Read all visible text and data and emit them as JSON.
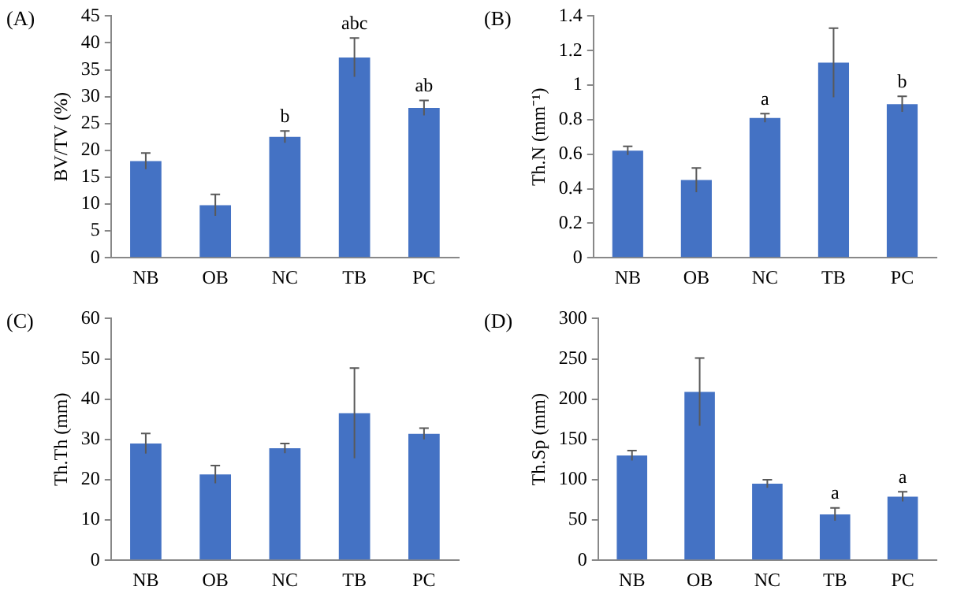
{
  "chart_data": [
    {
      "type": "bar",
      "title": "(A)",
      "ylabel": "BV/TV (%)",
      "categories": [
        "NB",
        "OB",
        "NC",
        "TB",
        "PC"
      ],
      "color": "#4472c4",
      "values": [
        18,
        9.8,
        22.5,
        37.3,
        27.9
      ],
      "errors": [
        1.5,
        2,
        1.1,
        3.6,
        1.4
      ],
      "ylim": [
        0,
        45
      ],
      "yticks": [
        0,
        5,
        10,
        15,
        20,
        25,
        30,
        35,
        40,
        45
      ],
      "grid": false,
      "legend": false,
      "annotations": [
        {
          "text": "b",
          "x": "NC",
          "y": 23.6
        },
        {
          "text": "abc",
          "x": "TB",
          "y": 40.9
        },
        {
          "text": "ab",
          "x": "PC",
          "y": 29.3
        }
      ]
    },
    {
      "type": "bar",
      "title": "(B)",
      "ylabel": "Th.N (mm⁻¹)",
      "categories": [
        "NB",
        "OB",
        "NC",
        "TB",
        "PC"
      ],
      "color": "#4472c4",
      "values": [
        0.62,
        0.45,
        0.81,
        1.13,
        0.89
      ],
      "errors": [
        0.025,
        0.07,
        0.025,
        0.2,
        0.045
      ],
      "ylim": [
        0,
        1.4
      ],
      "yticks": [
        0,
        0.2,
        0.4,
        0.6,
        0.8,
        1,
        1.2,
        1.4
      ],
      "grid": false,
      "legend": false,
      "annotations": [
        {
          "text": "a",
          "x": "NC",
          "y": 0.835
        },
        {
          "text": "b",
          "x": "PC",
          "y": 0.935
        }
      ]
    },
    {
      "type": "bar",
      "title": "(C)",
      "ylabel": "Th.Th (mm)",
      "categories": [
        "NB",
        "OB",
        "NC",
        "TB",
        "PC"
      ],
      "color": "#4472c4",
      "values": [
        29,
        21.3,
        27.8,
        36.5,
        31.4
      ],
      "errors": [
        2.5,
        2.2,
        1.2,
        11.2,
        1.4
      ],
      "ylim": [
        0,
        60
      ],
      "yticks": [
        0,
        10,
        20,
        30,
        40,
        50,
        60
      ],
      "grid": false,
      "legend": false
    },
    {
      "type": "bar",
      "title": "(D)",
      "ylabel": "Th.Sp (mm)",
      "categories": [
        "NB",
        "OB",
        "NC",
        "TB",
        "PC"
      ],
      "color": "#4472c4",
      "values": [
        130,
        209,
        95,
        57,
        79
      ],
      "errors": [
        6,
        42,
        5,
        8,
        6
      ],
      "ylim": [
        0,
        300
      ],
      "yticks": [
        0,
        50,
        100,
        150,
        200,
        250,
        300
      ],
      "grid": false,
      "legend": false,
      "annotations": [
        {
          "text": "a",
          "x": "TB",
          "y": 65
        },
        {
          "text": "a",
          "x": "PC",
          "y": 85
        }
      ]
    }
  ]
}
